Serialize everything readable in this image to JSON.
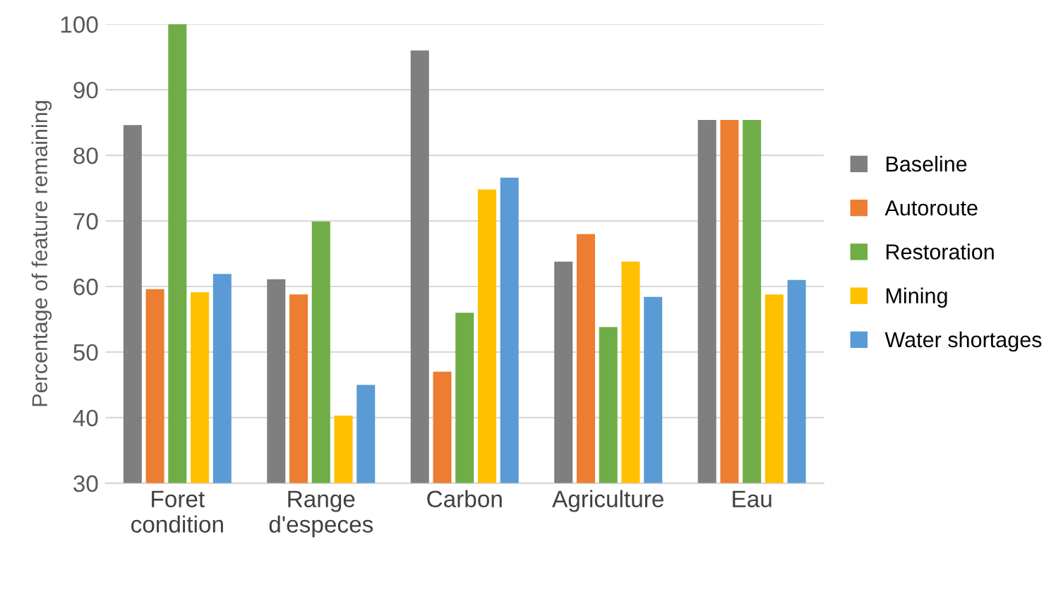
{
  "chart_data": {
    "type": "bar",
    "ylabel": "Percentage of feature remaining",
    "categories": [
      "Foret\ncondition",
      "Range\nd'especes",
      "Carbon",
      "Agriculture",
      "Eau"
    ],
    "series": [
      {
        "name": "Baseline",
        "color": "#7f7f7f",
        "values": [
          84.6,
          61.1,
          96,
          63.8,
          85.4
        ]
      },
      {
        "name": "Autoroute",
        "color": "#ed7d31",
        "values": [
          59.6,
          58.8,
          47,
          68,
          85.4
        ]
      },
      {
        "name": "Restoration",
        "color": "#70ad47",
        "values": [
          100,
          69.9,
          56,
          53.8,
          85.4
        ]
      },
      {
        "name": "Mining",
        "color": "#ffc000",
        "values": [
          59.1,
          40.3,
          74.8,
          63.8,
          58.8
        ]
      },
      {
        "name": "Water shortages",
        "color": "#5b9bd5",
        "values": [
          61.9,
          45,
          76.6,
          58.4,
          61
        ]
      }
    ],
    "ylim": [
      30,
      100
    ],
    "yticks": [
      30,
      40,
      50,
      60,
      70,
      80,
      90,
      100
    ],
    "grid": "y",
    "legend": "right"
  }
}
